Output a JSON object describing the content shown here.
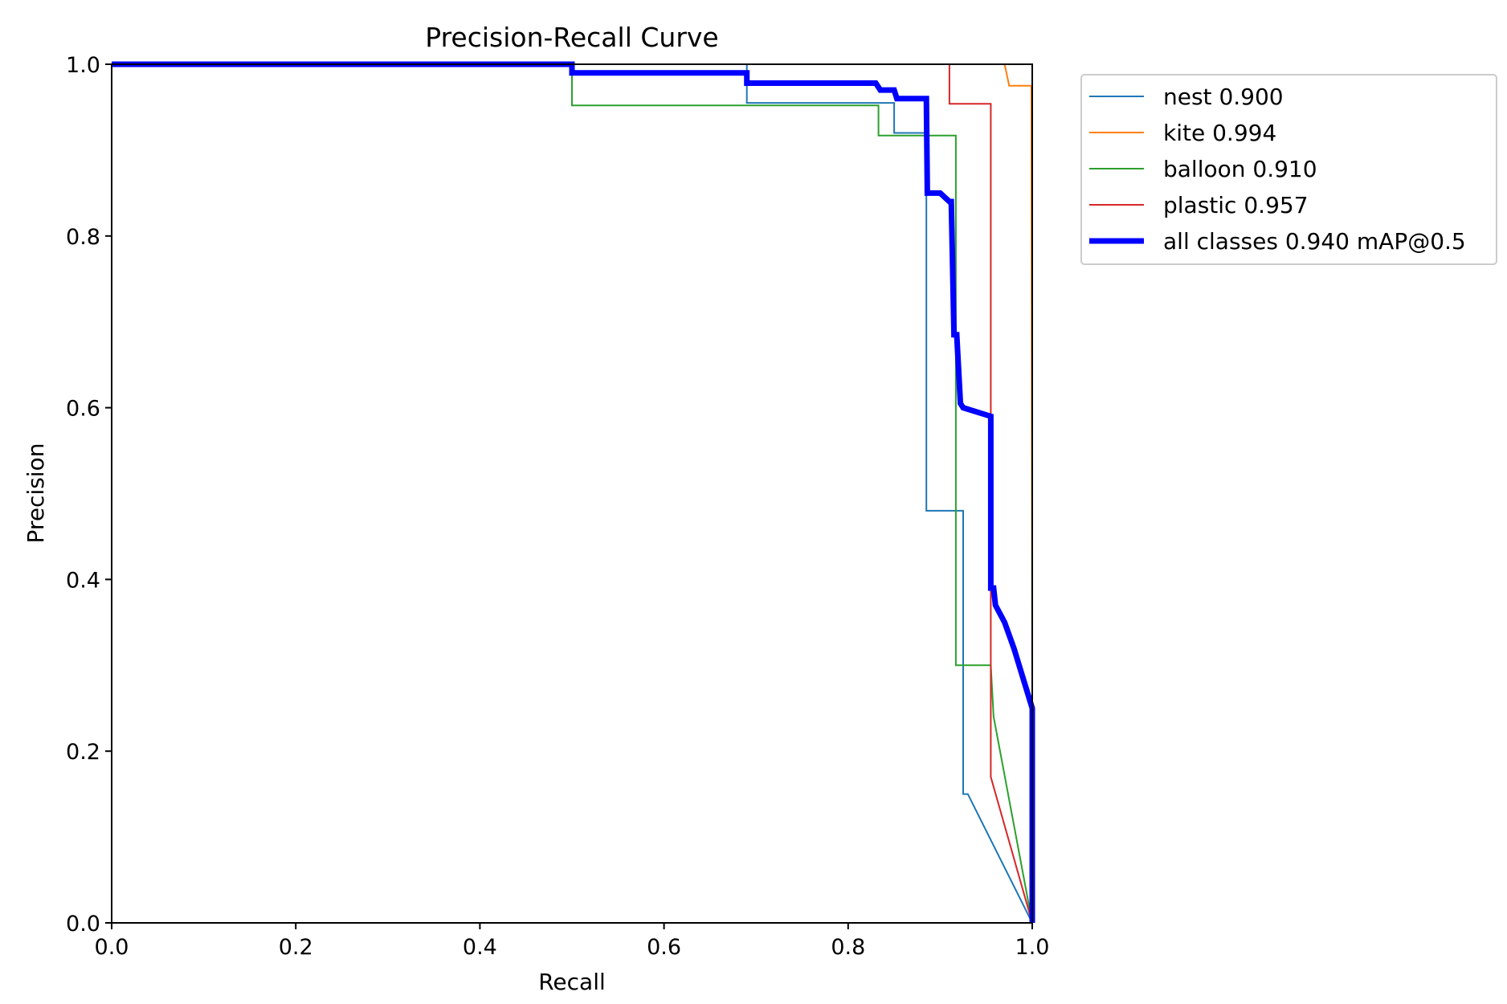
{
  "chart_data": {
    "type": "line",
    "title": "Precision-Recall Curve",
    "xlabel": "Recall",
    "ylabel": "Precision",
    "xlim": [
      0.0,
      1.0
    ],
    "ylim": [
      0.0,
      1.0
    ],
    "xticks": [
      "0.0",
      "0.2",
      "0.4",
      "0.6",
      "0.8",
      "1.0"
    ],
    "yticks": [
      "0.0",
      "0.2",
      "0.4",
      "0.6",
      "0.8",
      "1.0"
    ],
    "grid": false,
    "legend_position": "outside-top-right",
    "series": [
      {
        "name": "nest",
        "legend_label": "nest 0.900",
        "color": "#1f77b4",
        "x": [
          0.0,
          0.69,
          0.69,
          0.85,
          0.85,
          0.885,
          0.885,
          0.925,
          0.925,
          0.93,
          1.0
        ],
        "y": [
          1.0,
          1.0,
          0.955,
          0.955,
          0.92,
          0.92,
          0.48,
          0.48,
          0.15,
          0.15,
          0.0
        ]
      },
      {
        "name": "kite",
        "legend_label": "kite 0.994",
        "color": "#ff7f0e",
        "x": [
          0.0,
          0.97,
          0.975,
          0.999,
          1.0,
          1.0
        ],
        "y": [
          1.0,
          1.0,
          0.975,
          0.975,
          0.26,
          0.0
        ]
      },
      {
        "name": "balloon",
        "legend_label": "balloon 0.910",
        "color": "#2ca02c",
        "x": [
          0.0,
          0.5,
          0.5,
          0.833,
          0.833,
          0.917,
          0.917,
          0.955,
          0.958,
          1.0
        ],
        "y": [
          1.0,
          1.0,
          0.952,
          0.952,
          0.917,
          0.917,
          0.3,
          0.3,
          0.24,
          0.0
        ]
      },
      {
        "name": "plastic",
        "legend_label": "plastic 0.957",
        "color": "#d62728",
        "x": [
          0.0,
          0.91,
          0.91,
          0.955,
          0.955,
          1.0
        ],
        "y": [
          1.0,
          1.0,
          0.954,
          0.954,
          0.17,
          0.0
        ]
      },
      {
        "name": "all classes",
        "legend_label": "all classes 0.940 mAP@0.5",
        "color": "#0000ff",
        "x": [
          0.0,
          0.5,
          0.5,
          0.69,
          0.69,
          0.83,
          0.835,
          0.85,
          0.853,
          0.885,
          0.886,
          0.9,
          0.91,
          0.912,
          0.915,
          0.918,
          0.922,
          0.925,
          0.955,
          0.955,
          0.958,
          0.96,
          0.97,
          0.98,
          1.0,
          1.0
        ],
        "y": [
          1.0,
          1.0,
          0.99,
          0.99,
          0.978,
          0.978,
          0.97,
          0.97,
          0.96,
          0.96,
          0.85,
          0.85,
          0.84,
          0.84,
          0.685,
          0.685,
          0.605,
          0.6,
          0.59,
          0.39,
          0.39,
          0.37,
          0.35,
          0.32,
          0.25,
          0.0
        ]
      }
    ]
  }
}
